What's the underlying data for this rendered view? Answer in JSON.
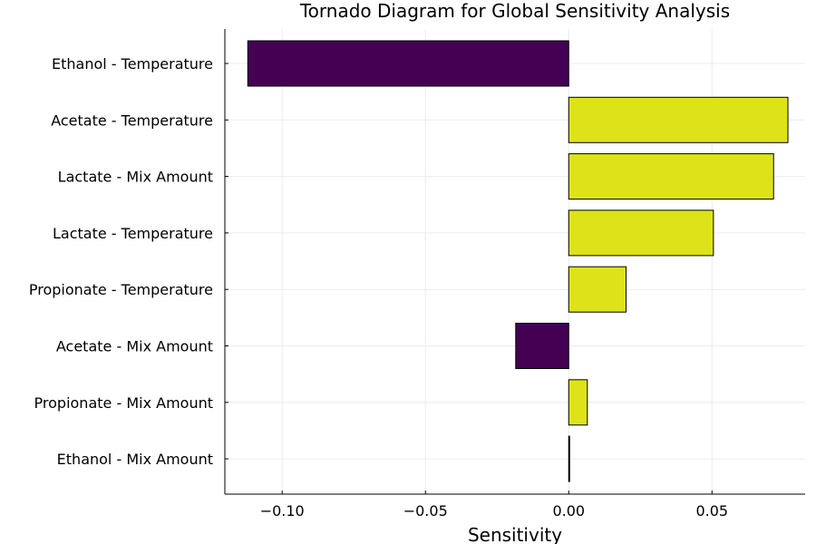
{
  "chart_data": {
    "type": "bar",
    "orientation": "horizontal",
    "title": "Tornado Diagram for Global Sensitivity Analysis",
    "xlabel": "Sensitivity",
    "ylabel": "",
    "categories": [
      "Ethanol - Temperature",
      "Acetate - Temperature",
      "Lactate - Mix Amount",
      "Lactate - Temperature",
      "Propionate - Temperature",
      "Acetate - Mix Amount",
      "Propionate - Mix Amount",
      "Ethanol - Mix Amount"
    ],
    "values": [
      -0.112,
      0.0765,
      0.0715,
      0.0505,
      0.02,
      -0.0185,
      0.0065,
      0.0003
    ],
    "xlim": [
      -0.12,
      0.0825
    ],
    "xticks": [
      -0.1,
      -0.05,
      0.0,
      0.05
    ],
    "xtick_labels": [
      "−0.10",
      "−0.05",
      "0.00",
      "0.05"
    ],
    "grid": true,
    "legend": "none",
    "colors": {
      "positive": "#dde318",
      "negative": "#440154",
      "edge": "#000000",
      "grid": "#ececec"
    }
  }
}
